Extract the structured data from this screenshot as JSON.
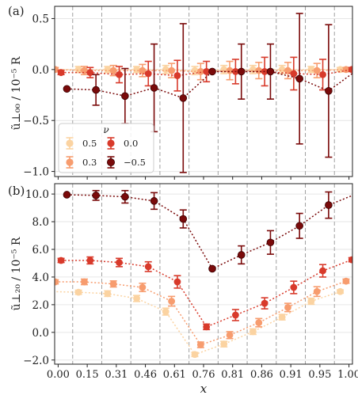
{
  "x_axis_label": "x",
  "x_tick_labels": [
    "0.00",
    "0.15",
    "0.31",
    "0.46",
    "0.61",
    "0.76",
    "0.81",
    "0.86",
    "0.91",
    "0.95",
    "1.00"
  ],
  "legend": {
    "title": "ν",
    "entries": [
      {
        "label": "0.5",
        "color": "#fbd3a1"
      },
      {
        "label": "0.3",
        "color": "#f79c6e"
      },
      {
        "label": "0.0",
        "color": "#d83a2b"
      },
      {
        "label": "−0.5",
        "color": "#7a0a0a"
      }
    ]
  },
  "chart_data": [
    {
      "type": "scatter",
      "panel_label": "(a)",
      "ylabel": "ũ⊥₀₀ / 10⁻⁵ R",
      "ylim": [
        -1.05,
        0.62
      ],
      "yticks": [
        -1.0,
        -0.5,
        0.0,
        0.5
      ],
      "ytick_labels": [
        "−1.0",
        "−0.5",
        "0.0",
        "0.5"
      ],
      "grid": true,
      "legend_position": "lower-left",
      "x": [
        0.0,
        1.0,
        2.0,
        3.0,
        4.0,
        5.0,
        6.0,
        7.0,
        8.0,
        9.0,
        10.0
      ],
      "series": [
        {
          "name": "0.5",
          "color": "#fbd3a1",
          "offset": -0.3,
          "edges": false,
          "values": [
            0.0,
            0.0,
            0.0,
            0.0,
            0.0,
            -0.01,
            0.0,
            0.0,
            0.0,
            0.0,
            0.0
          ],
          "errors": [
            0.02,
            0.03,
            0.03,
            0.03,
            0.04,
            0.04,
            0.04,
            0.04,
            0.04,
            0.03,
            0.02
          ]
        },
        {
          "name": "0.3",
          "color": "#f79c6e",
          "offset": -0.1,
          "edges": false,
          "values": [
            0.0,
            -0.01,
            -0.01,
            -0.01,
            -0.01,
            -0.02,
            -0.01,
            -0.01,
            -0.01,
            -0.01,
            0.0
          ],
          "errors": [
            0.02,
            0.04,
            0.05,
            0.06,
            0.07,
            0.08,
            0.09,
            0.08,
            0.08,
            0.07,
            0.02
          ]
        },
        {
          "name": "0.0",
          "color": "#d83a2b",
          "offset": 0.1,
          "edges": false,
          "values": [
            -0.03,
            -0.03,
            -0.05,
            -0.04,
            -0.06,
            -0.02,
            -0.02,
            -0.02,
            -0.04,
            -0.05,
            0.0
          ],
          "errors": [
            0.02,
            0.05,
            0.08,
            0.12,
            0.15,
            0.1,
            0.12,
            0.14,
            0.16,
            0.15,
            0.02
          ]
        },
        {
          "name": "−0.5",
          "color": "#7a0a0a",
          "offset": 0.3,
          "edges": true,
          "values": [
            -0.19,
            -0.2,
            -0.26,
            -0.18,
            -0.28,
            -0.02,
            -0.02,
            -0.02,
            -0.09,
            -0.21,
            0.0
          ],
          "errors": [
            0.0,
            0.15,
            0.27,
            0.43,
            0.73,
            0.0,
            0.27,
            0.27,
            0.64,
            0.65,
            0.0
          ]
        }
      ]
    },
    {
      "type": "scatter",
      "panel_label": "(b)",
      "ylabel": "ũ⊥₂₀ / 10⁻⁵ R",
      "ylim": [
        -2.3,
        10.75
      ],
      "yticks": [
        -2.0,
        0.0,
        2.0,
        4.0,
        6.0,
        8.0,
        10.0
      ],
      "ytick_labels": [
        "−2.0",
        "0.0",
        "2.0",
        "4.0",
        "6.0",
        "8.0",
        "10.0"
      ],
      "grid": true,
      "x": [
        0.0,
        1.0,
        2.0,
        3.0,
        4.0,
        5.0,
        6.0,
        7.0,
        8.0,
        9.0,
        10.0
      ],
      "series": [
        {
          "name": "0.5",
          "color": "#fbd3a1",
          "offset": -0.3,
          "edges": false,
          "values": [
            2.95,
            2.9,
            2.8,
            2.45,
            1.5,
            -1.6,
            -0.85,
            0.05,
            1.1,
            2.25,
            2.95
          ],
          "errors": [
            0.12,
            0.15,
            0.2,
            0.22,
            0.25,
            0.15,
            0.2,
            0.2,
            0.2,
            0.22,
            0.12
          ]
        },
        {
          "name": "0.3",
          "color": "#f79c6e",
          "offset": -0.1,
          "edges": false,
          "values": [
            3.65,
            3.65,
            3.5,
            3.25,
            2.25,
            -0.9,
            -0.2,
            0.7,
            1.8,
            2.95,
            3.7
          ],
          "errors": [
            0.15,
            0.2,
            0.22,
            0.3,
            0.35,
            0.2,
            0.25,
            0.3,
            0.3,
            0.35,
            0.15
          ]
        },
        {
          "name": "0.0",
          "color": "#d83a2b",
          "offset": 0.1,
          "edges": false,
          "values": [
            5.2,
            5.2,
            5.05,
            4.75,
            3.65,
            0.4,
            1.25,
            2.1,
            3.25,
            4.45,
            5.25
          ],
          "errors": [
            0.15,
            0.25,
            0.3,
            0.35,
            0.45,
            0.2,
            0.4,
            0.4,
            0.45,
            0.45,
            0.15
          ]
        },
        {
          "name": "−0.5",
          "color": "#7a0a0a",
          "offset": 0.3,
          "edges": true,
          "values": [
            9.95,
            9.9,
            9.8,
            9.5,
            8.2,
            4.6,
            5.6,
            6.5,
            7.7,
            9.2,
            10.05
          ],
          "errors": [
            0.0,
            0.35,
            0.45,
            0.6,
            0.65,
            0.0,
            0.65,
            0.85,
            0.9,
            0.95,
            0.0
          ]
        }
      ]
    }
  ]
}
